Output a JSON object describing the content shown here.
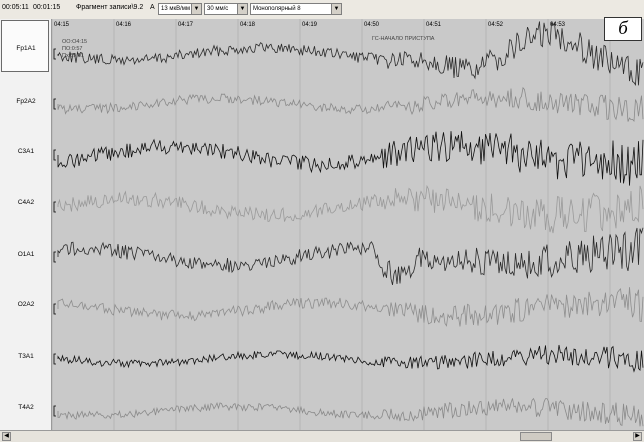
{
  "toolbar": {
    "start_time": "00:05:11",
    "end_time": "00:01:15",
    "status_text": "Фрагмент записи\\9.2",
    "marker_a": "A",
    "sensitivity": "13 мкВ/мм",
    "speed": "30 мм/с",
    "montage": "Монополярный 8"
  },
  "figure_label": "б",
  "time_marks": [
    "04:15",
    "04:16",
    "04:17",
    "04:18",
    "04:19",
    "04:50",
    "04:51",
    "04:52",
    "04:53"
  ],
  "annotations": {
    "top_left": [
      "ОО:О4:15",
      "ПО:0:57",
      "Пх:59:01"
    ],
    "top_right": "ГС-НАЧАЛО ПРИСТУПА"
  },
  "channels": [
    {
      "name": "Fp1A1",
      "color": "#2b2b2b"
    },
    {
      "name": "Fp2A2",
      "color": "#8a8a8a"
    },
    {
      "name": "C3A1",
      "color": "#111111"
    },
    {
      "name": "C4A2",
      "color": "#9a9a9a"
    },
    {
      "name": "O1A1",
      "color": "#2b2b2b"
    },
    {
      "name": "O2A2",
      "color": "#8e8e8e"
    },
    {
      "name": "T3A1",
      "color": "#111111"
    },
    {
      "name": "T4A2",
      "color": "#8a8a8a"
    }
  ]
}
